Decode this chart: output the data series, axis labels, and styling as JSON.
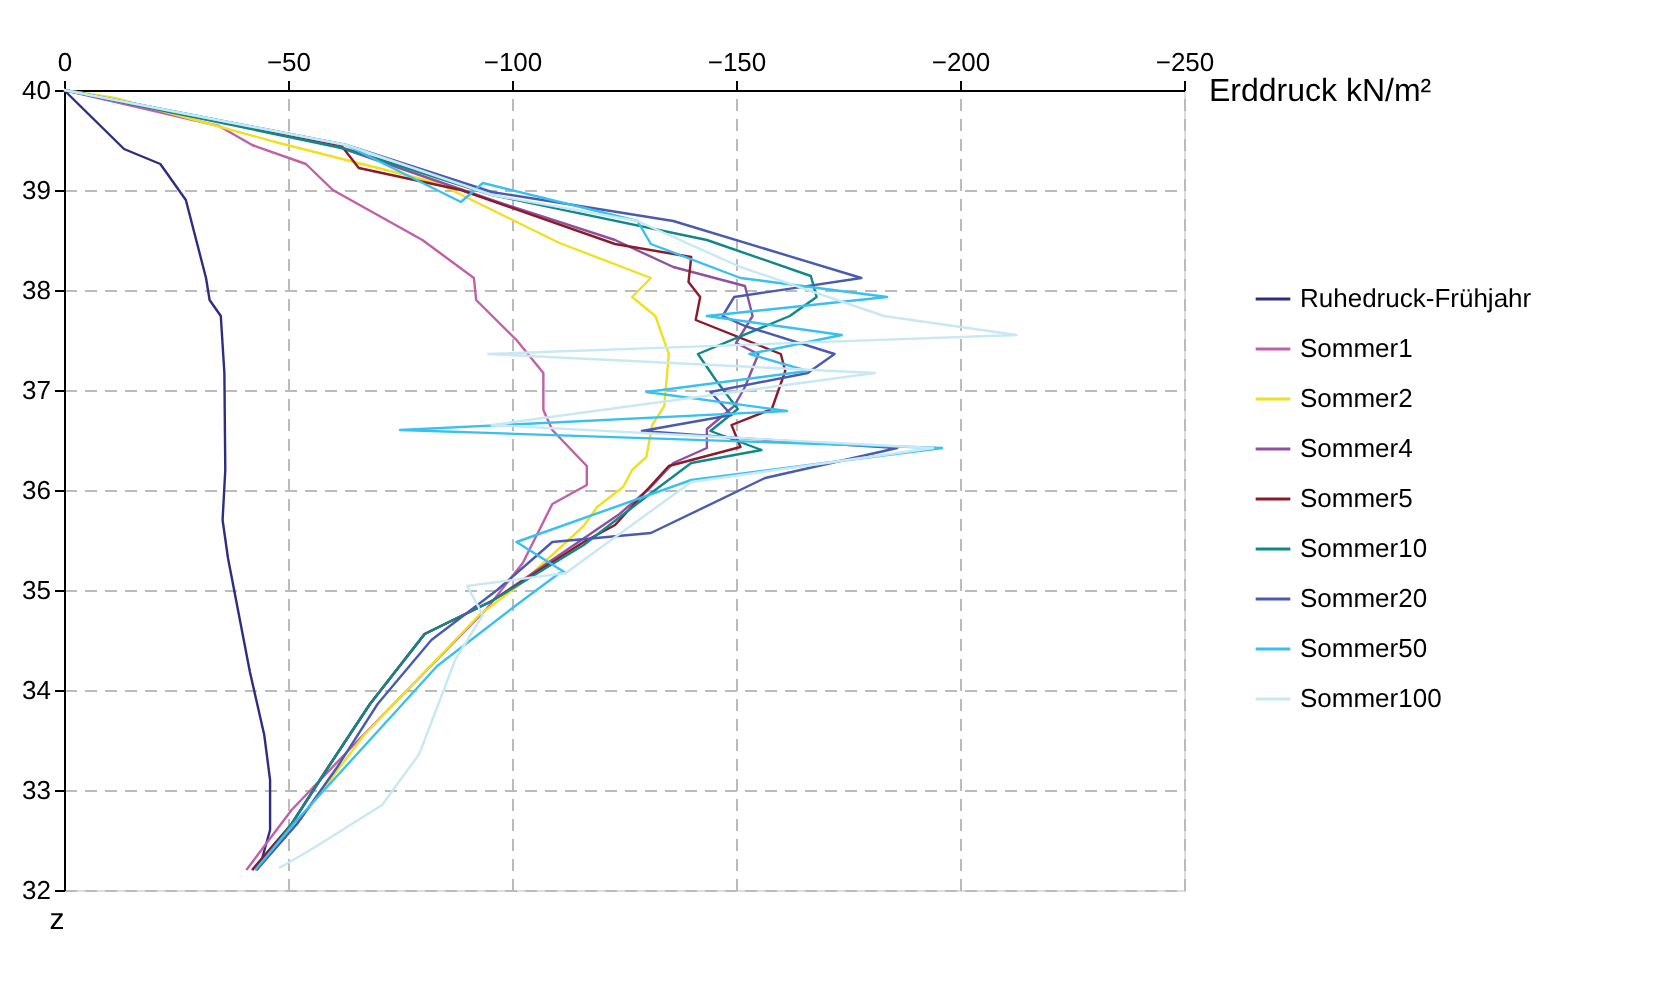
{
  "chart_data": {
    "type": "line",
    "xlabel": "Erddruck kN/m²",
    "ylabel": "z",
    "xlim": [
      0,
      -250
    ],
    "xticks": [
      0,
      -50,
      -100,
      -150,
      -200,
      -250
    ],
    "ylim": [
      32,
      40
    ],
    "yticks": [
      32,
      33,
      34,
      35,
      36,
      37,
      38,
      39,
      40
    ],
    "grid": true,
    "legend": "right",
    "line_style": "solid",
    "marker": "none",
    "series": [
      {
        "name": "Ruhedruck-Frühjahr",
        "color": "#2e2e80",
        "x": [
          0,
          -13.4,
          -21.5,
          -27.2,
          -31.7,
          -32.5,
          -35,
          -35.8,
          -36,
          -35.4,
          -36.6,
          -41.5,
          -44.7,
          -46,
          -46,
          -44,
          -42.7
        ],
        "values": [
          40,
          39.41,
          39.26,
          38.9,
          38.12,
          37.9,
          37.74,
          37.17,
          36.2,
          35.7,
          35.32,
          34.18,
          33.55,
          33.1,
          32.6,
          32.28,
          32.2
        ]
      },
      {
        "name": "Sommer1",
        "color": "#c060a8",
        "x": [
          0,
          -34.6,
          -42,
          -54,
          -60,
          -80,
          -91.5,
          -92,
          -101,
          -107,
          -107,
          -109,
          -116.7,
          -116.7,
          -109,
          -102.4,
          -94.3,
          -64,
          -50.8,
          -40.7
        ],
        "values": [
          40,
          39.64,
          39.45,
          39.26,
          39.0,
          38.5,
          38.12,
          37.9,
          37.5,
          37.17,
          36.8,
          36.6,
          36.24,
          36.05,
          35.86,
          35.27,
          34.81,
          33.42,
          32.8,
          32.2
        ]
      },
      {
        "name": "Sommer2",
        "color": "#f0e020",
        "x": [
          0,
          -11.4,
          -48,
          -83.3,
          -110.6,
          -131,
          -126.8,
          -132,
          -135,
          -134,
          -131.3,
          -130,
          -126.8,
          -124.8,
          -119,
          -116,
          -102.4,
          -92.7,
          -67,
          -52,
          -42
        ],
        "values": [
          40,
          39.92,
          39.47,
          39.07,
          38.47,
          38.12,
          37.93,
          37.74,
          37.36,
          36.84,
          36.65,
          36.33,
          36.2,
          36.03,
          35.83,
          35.64,
          35.08,
          34.75,
          33.55,
          32.66,
          32.2
        ]
      },
      {
        "name": "Sommer4",
        "color": "#9050a0",
        "x": [
          0,
          -60,
          -95.5,
          -123,
          -136,
          -152,
          -153.7,
          -150,
          -155,
          -152,
          -149.6,
          -143.5,
          -143.5,
          -136,
          -131,
          -124,
          -95.5,
          -80.5,
          -68.3,
          -59,
          -50.8,
          -42
        ],
        "values": [
          40,
          39.45,
          38.9,
          38.5,
          38.23,
          38.04,
          37.74,
          37.47,
          37.36,
          37.03,
          36.84,
          36.61,
          36.42,
          36.27,
          36.03,
          35.76,
          34.89,
          34.56,
          33.86,
          33.23,
          32.66,
          32.2
        ]
      },
      {
        "name": "Sommer5",
        "color": "#8b1a2a",
        "x": [
          0,
          -61.8,
          -65.8,
          -88.6,
          -123,
          -140,
          -139.4,
          -142,
          -141,
          -160,
          -161,
          -158,
          -149,
          -151,
          -135,
          -123,
          -116,
          -95.5,
          -80.5,
          -68.3,
          -59,
          -50.8,
          -42
        ],
        "values": [
          40,
          39.45,
          39.22,
          39.0,
          38.46,
          38.33,
          38.08,
          37.93,
          37.7,
          37.36,
          37.19,
          36.81,
          36.65,
          36.43,
          36.24,
          35.65,
          35.48,
          34.89,
          34.56,
          33.86,
          33.23,
          32.66,
          32.2
        ]
      },
      {
        "name": "Sommer10",
        "color": "#108888",
        "x": [
          0,
          -63,
          -95.5,
          -143.5,
          -166.7,
          -168,
          -162,
          -141.5,
          -145.5,
          -150.4,
          -144.3,
          -155.7,
          -140,
          -129,
          -116,
          -95.5,
          -80.5,
          -68.3,
          -59,
          -50.8,
          -43
        ],
        "values": [
          40,
          39.41,
          38.95,
          38.5,
          38.14,
          37.93,
          37.74,
          37.36,
          37.1,
          36.81,
          36.59,
          36.4,
          36.27,
          35.9,
          35.45,
          34.89,
          34.56,
          33.86,
          33.23,
          32.66,
          32.2
        ]
      },
      {
        "name": "Sommer20",
        "color": "#4a5ab0",
        "x": [
          0,
          -63,
          -95.5,
          -136,
          -178,
          -149.6,
          -147,
          -152,
          -172,
          -166,
          -144.3,
          -149,
          -129,
          -150.4,
          -186,
          -156.5,
          -131,
          -109,
          -96.7,
          -82,
          -70,
          -61,
          -52,
          -43
        ],
        "values": [
          40,
          39.45,
          38.98,
          38.69,
          38.12,
          37.93,
          37.74,
          37.64,
          37.36,
          37.17,
          36.98,
          36.75,
          36.59,
          36.52,
          36.42,
          36.12,
          35.57,
          35.48,
          35.0,
          34.5,
          33.86,
          33.23,
          32.66,
          32.2
        ]
      },
      {
        "name": "Sommer50",
        "color": "#38c0f0",
        "x": [
          0,
          -63,
          -88.6,
          -93.5,
          -128,
          -131,
          -151,
          -183.7,
          -143.5,
          -173.6,
          -153,
          -166,
          -130,
          -161.4,
          -75,
          -196,
          -140,
          -101,
          -112,
          -110.6,
          -101,
          -83.3,
          -64,
          -52,
          -42.7
        ],
        "values": [
          40,
          39.45,
          38.88,
          39.07,
          38.69,
          38.46,
          38.12,
          37.93,
          37.74,
          37.55,
          37.36,
          37.19,
          36.98,
          36.79,
          36.6,
          36.42,
          36.1,
          35.48,
          35.17,
          35.17,
          34.85,
          34.24,
          33.29,
          32.7,
          32.2
        ]
      },
      {
        "name": "Sommer100",
        "color": "#c8e8f4",
        "x": [
          0,
          -63,
          -95.5,
          -128,
          -151,
          -183,
          -212.6,
          -94.7,
          -181,
          -95.5,
          -194,
          -140,
          -112,
          -90,
          -93.5,
          -87.4,
          -79.3,
          -71,
          -55,
          -48
        ],
        "values": [
          40,
          39.45,
          38.95,
          38.69,
          38.23,
          37.74,
          37.55,
          37.36,
          37.17,
          36.65,
          36.42,
          36.08,
          35.17,
          35.04,
          34.75,
          34.31,
          33.36,
          32.85,
          32.4,
          32.22
        ]
      }
    ]
  }
}
